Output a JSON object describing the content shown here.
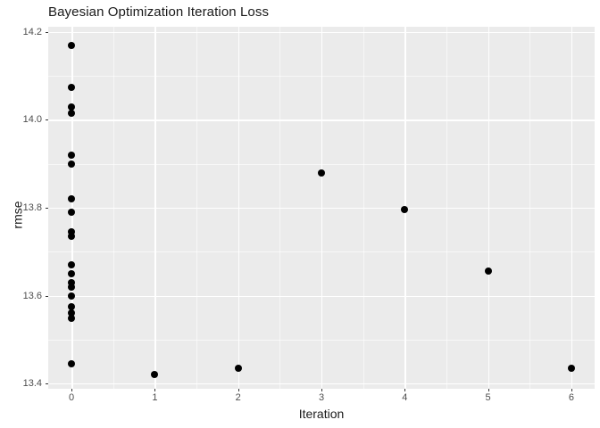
{
  "chart_data": {
    "type": "scatter",
    "title": "Bayesian Optimization Iteration Loss",
    "xlabel": "Iteration",
    "ylabel": "rmse",
    "xlim": [
      -0.28,
      6.28
    ],
    "ylim": [
      13.388,
      14.212
    ],
    "x_ticks": [
      0,
      1,
      2,
      3,
      4,
      5,
      6
    ],
    "y_ticks": [
      "14.2",
      "14.0",
      "13.8",
      "13.6",
      "13.4"
    ],
    "y_tick_values": [
      14.2,
      14.0,
      13.8,
      13.6,
      13.4
    ],
    "x_minor_ticks": [
      0.5,
      1.5,
      2.5,
      3.5,
      4.5,
      5.5
    ],
    "y_minor_ticks": [
      14.1,
      13.9,
      13.7,
      13.5
    ],
    "grid": true,
    "legend": "none",
    "points": [
      {
        "x": 0,
        "y": 14.17
      },
      {
        "x": 0,
        "y": 14.075
      },
      {
        "x": 0,
        "y": 14.03
      },
      {
        "x": 0,
        "y": 14.015
      },
      {
        "x": 0,
        "y": 13.92
      },
      {
        "x": 0,
        "y": 13.9
      },
      {
        "x": 0,
        "y": 13.82
      },
      {
        "x": 0,
        "y": 13.79
      },
      {
        "x": 0,
        "y": 13.745
      },
      {
        "x": 0,
        "y": 13.735
      },
      {
        "x": 0,
        "y": 13.67
      },
      {
        "x": 0,
        "y": 13.65
      },
      {
        "x": 0,
        "y": 13.63
      },
      {
        "x": 0,
        "y": 13.62
      },
      {
        "x": 0,
        "y": 13.6
      },
      {
        "x": 0,
        "y": 13.575
      },
      {
        "x": 0,
        "y": 13.56
      },
      {
        "x": 0,
        "y": 13.548
      },
      {
        "x": 0,
        "y": 13.445
      },
      {
        "x": 1,
        "y": 13.42
      },
      {
        "x": 2,
        "y": 13.435
      },
      {
        "x": 3,
        "y": 13.88
      },
      {
        "x": 4,
        "y": 13.795
      },
      {
        "x": 5,
        "y": 13.655
      },
      {
        "x": 6,
        "y": 13.435
      }
    ],
    "colors": {
      "panel_background": "#EBEBEB",
      "gridline": "#FFFFFF",
      "point": "#000000",
      "tick_label": "#4D4D4D",
      "tick_mark": "#333333",
      "title_text": "#1A1A1A"
    }
  }
}
